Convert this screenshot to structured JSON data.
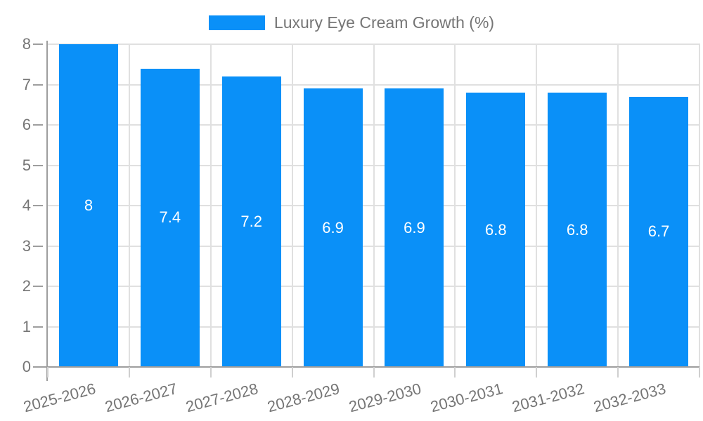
{
  "legend": {
    "items": [
      {
        "label": "Luxury Eye Cream Growth (%)"
      }
    ]
  },
  "chart_data": {
    "type": "bar",
    "title": "Luxury Eye Cream Growth (%)",
    "categories": [
      "2025-2026",
      "2026-2027",
      "2027-2028",
      "2028-2029",
      "2029-2030",
      "2030-2031",
      "2031-2032",
      "2032-2033"
    ],
    "series": [
      {
        "name": "Luxury Eye Cream Growth (%)",
        "values": [
          8,
          7.4,
          7.2,
          6.9,
          6.9,
          6.8,
          6.8,
          6.7
        ],
        "value_labels": [
          "8",
          "7.4",
          "7.2",
          "6.9",
          "6.9",
          "6.8",
          "6.8",
          "6.7"
        ]
      }
    ],
    "xlabel": "",
    "ylabel": "",
    "ylim": [
      0,
      8
    ],
    "yticks": [
      0,
      1,
      2,
      3,
      4,
      5,
      6,
      7,
      8
    ],
    "grid": true,
    "legend_position": "top",
    "colors": {
      "bar": "#0A90F8",
      "grid": "#e0e0e0",
      "axis": "#9e9e9e",
      "x_tick": "#cfcfcf",
      "tick_label": "#757575",
      "value_label": "#ffffff",
      "background": "#ffffff"
    }
  }
}
